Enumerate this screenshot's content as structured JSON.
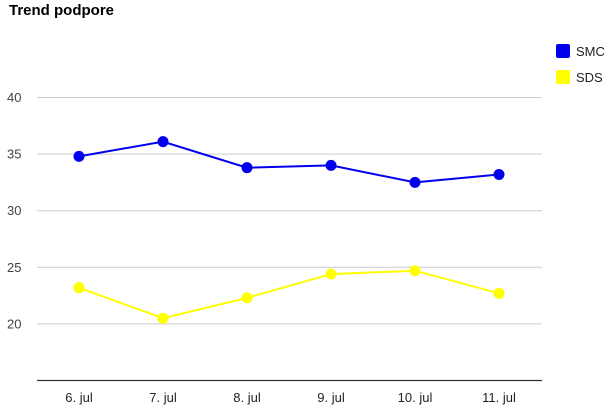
{
  "chart_data": {
    "type": "line",
    "title": "Trend podpore",
    "categories": [
      "6. jul",
      "7. jul",
      "8. jul",
      "9. jul",
      "10. jul",
      "11. jul"
    ],
    "series": [
      {
        "name": "SMC",
        "values": [
          34.8,
          36.1,
          33.8,
          34.0,
          32.5,
          33.2
        ],
        "color": "#0000ee"
      },
      {
        "name": "SDS",
        "values": [
          23.2,
          20.5,
          22.3,
          24.4,
          24.7,
          22.7
        ],
        "color": "#ffff00"
      }
    ],
    "ylim": [
      15,
      40
    ],
    "yticks": [
      20,
      25,
      30,
      35,
      40
    ],
    "xlabel": "",
    "ylabel": "",
    "grid": true,
    "legend_position": "right"
  }
}
